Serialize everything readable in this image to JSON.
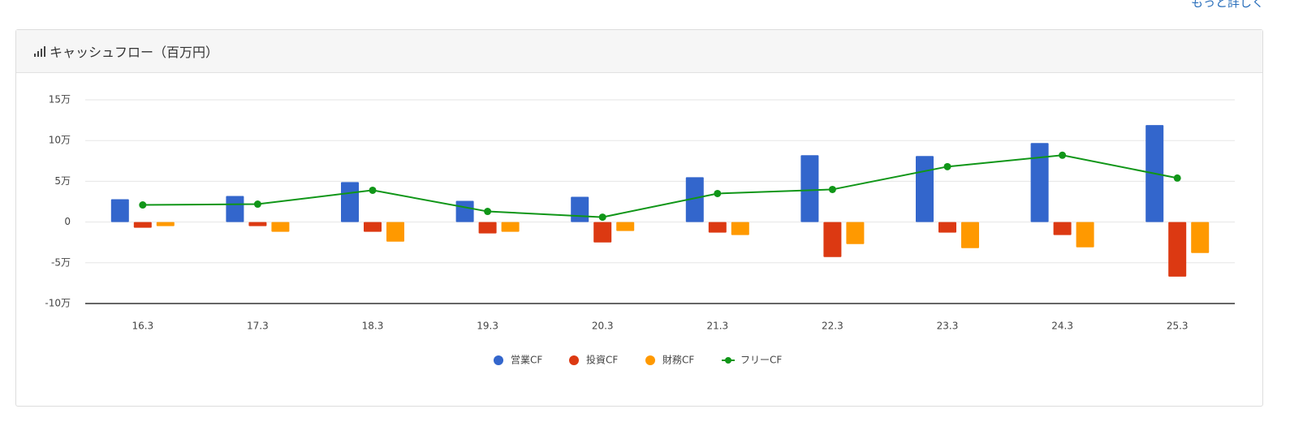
{
  "more_link": "もっと詳しく",
  "chart_data": {
    "type": "bar",
    "title": "キャッシュフロー（百万円）",
    "categories": [
      "16.3",
      "17.3",
      "18.3",
      "19.3",
      "20.3",
      "21.3",
      "22.3",
      "23.3",
      "24.3",
      "25.3"
    ],
    "series": [
      {
        "name": "営業CF",
        "color": "#3366cc",
        "values": [
          28000,
          32000,
          49000,
          26000,
          31000,
          55000,
          82000,
          81000,
          97000,
          119000
        ]
      },
      {
        "name": "投資CF",
        "color": "#dc3912",
        "values": [
          -7000,
          -5000,
          -12000,
          -14000,
          -25000,
          -13000,
          -43000,
          -13000,
          -16000,
          -67000
        ]
      },
      {
        "name": "財務CF",
        "color": "#ff9900",
        "values": [
          -5000,
          -12000,
          -24000,
          -12000,
          -11000,
          -16000,
          -27000,
          -32000,
          -31000,
          -38000
        ]
      },
      {
        "name": "フリーCF",
        "color": "#109618",
        "type": "line",
        "values": [
          21000,
          22000,
          39000,
          13000,
          6000,
          35000,
          40000,
          68000,
          82000,
          54000
        ]
      }
    ],
    "ylim": [
      -100000,
      150000
    ],
    "yticks": [
      {
        "value": -100000,
        "label": "-10万"
      },
      {
        "value": -50000,
        "label": "-5万"
      },
      {
        "value": 0,
        "label": "0"
      },
      {
        "value": 50000,
        "label": "5万"
      },
      {
        "value": 100000,
        "label": "10万"
      },
      {
        "value": 150000,
        "label": "15万"
      }
    ],
    "grid": true,
    "legend": "bottom"
  }
}
